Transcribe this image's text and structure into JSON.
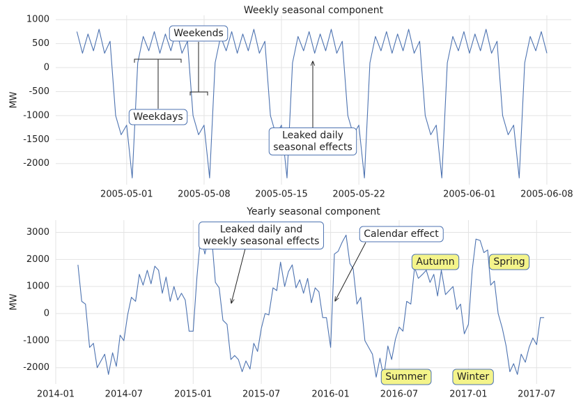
{
  "chart_data": [
    {
      "type": "line",
      "title": "Weekly seasonal component",
      "ylabel": "MW",
      "color": "#4c72b0",
      "grid": true,
      "xlim": [
        "2005-04-24T14:00",
        "2005-06-10T05:00"
      ],
      "ylim": [
        -2440,
        1090
      ],
      "xticks": [
        "2005-05-01",
        "2005-05-08",
        "2005-05-15",
        "2005-05-22",
        "2005-06-01",
        "2005-06-08"
      ],
      "yticks": [
        -2000,
        -1500,
        -1000,
        -500,
        0,
        500,
        1000
      ],
      "x": [
        "2005-04-26T12:00",
        "2005-04-27T00:00",
        "2005-04-27T12:00",
        "2005-04-28T00:00",
        "2005-04-28T12:00",
        "2005-04-29T00:00",
        "2005-04-29T12:00",
        "2005-04-30T00:00",
        "2005-04-30T12:00",
        "2005-05-01T00:00",
        "2005-05-01T12:00",
        "2005-05-02T00:00",
        "2005-05-02T12:00",
        "2005-05-03T00:00",
        "2005-05-03T12:00",
        "2005-05-04T00:00",
        "2005-05-04T12:00",
        "2005-05-05T00:00",
        "2005-05-05T12:00",
        "2005-05-06T00:00",
        "2005-05-06T12:00",
        "2005-05-07T00:00",
        "2005-05-07T12:00",
        "2005-05-08T00:00",
        "2005-05-08T12:00",
        "2005-05-09T00:00",
        "2005-05-09T12:00",
        "2005-05-10T00:00",
        "2005-05-10T12:00",
        "2005-05-11T00:00",
        "2005-05-11T12:00",
        "2005-05-12T00:00",
        "2005-05-12T12:00",
        "2005-05-13T00:00",
        "2005-05-13T12:00",
        "2005-05-14T00:00",
        "2005-05-14T12:00",
        "2005-05-15T00:00",
        "2005-05-15T12:00",
        "2005-05-16T00:00",
        "2005-05-16T12:00",
        "2005-05-17T00:00",
        "2005-05-17T12:00",
        "2005-05-18T00:00",
        "2005-05-18T12:00",
        "2005-05-19T00:00",
        "2005-05-19T12:00",
        "2005-05-20T00:00",
        "2005-05-20T12:00",
        "2005-05-21T00:00",
        "2005-05-21T12:00",
        "2005-05-22T00:00",
        "2005-05-22T12:00",
        "2005-05-23T00:00",
        "2005-05-23T12:00",
        "2005-05-24T00:00",
        "2005-05-24T12:00",
        "2005-05-25T00:00",
        "2005-05-25T12:00",
        "2005-05-26T00:00",
        "2005-05-26T12:00",
        "2005-05-27T00:00",
        "2005-05-27T12:00",
        "2005-05-28T00:00",
        "2005-05-28T12:00",
        "2005-05-29T00:00",
        "2005-05-29T12:00",
        "2005-05-30T00:00",
        "2005-05-30T12:00",
        "2005-05-31T00:00",
        "2005-05-31T12:00",
        "2005-06-01T00:00",
        "2005-06-01T12:00",
        "2005-06-02T00:00",
        "2005-06-02T12:00",
        "2005-06-03T00:00",
        "2005-06-03T12:00",
        "2005-06-04T00:00",
        "2005-06-04T12:00",
        "2005-06-05T00:00",
        "2005-06-05T12:00",
        "2005-06-06T00:00",
        "2005-06-06T12:00",
        "2005-06-07T00:00",
        "2005-06-07T12:00",
        "2005-06-08T00:00"
      ],
      "values": [
        750,
        300,
        700,
        350,
        800,
        300,
        550,
        -1000,
        -1400,
        -1200,
        -2300,
        100,
        650,
        350,
        750,
        300,
        700,
        350,
        800,
        300,
        550,
        -1000,
        -1400,
        -1200,
        -2300,
        100,
        650,
        350,
        750,
        300,
        700,
        350,
        800,
        300,
        550,
        -1000,
        -1400,
        -1200,
        -2300,
        100,
        650,
        350,
        750,
        300,
        700,
        350,
        800,
        300,
        550,
        -1000,
        -1400,
        -1200,
        -2300,
        100,
        650,
        350,
        750,
        300,
        700,
        350,
        800,
        300,
        550,
        -1000,
        -1400,
        -1200,
        -2300,
        100,
        650,
        350,
        750,
        300,
        700,
        350,
        800,
        300,
        550,
        -1000,
        -1400,
        -1200,
        -2300,
        100,
        650,
        350,
        750,
        300
      ],
      "annotations": [
        {
          "lines": [
            "Weekends"
          ]
        },
        {
          "lines": [
            "Weekdays"
          ]
        },
        {
          "lines": [
            "Leaked daily",
            "seasonal effects"
          ]
        }
      ]
    },
    {
      "type": "line",
      "title": "Yearly seasonal component",
      "ylabel": "MW",
      "color": "#4c72b0",
      "grid": true,
      "xlim": [
        "2014-01-01",
        "2017-10-01"
      ],
      "ylim": [
        -2600,
        3450
      ],
      "xticks": [
        "2014-01",
        "2014-07",
        "2015-01",
        "2015-07",
        "2016-01",
        "2016-07",
        "2017-01",
        "2017-07"
      ],
      "yticks": [
        -2000,
        -1000,
        0,
        1000,
        2000,
        3000
      ],
      "x": [
        "2014-03-01",
        "2014-03-11",
        "2014-03-21",
        "2014-04-01",
        "2014-04-11",
        "2014-04-21",
        "2014-05-01",
        "2014-05-11",
        "2014-05-21",
        "2014-06-01",
        "2014-06-11",
        "2014-06-21",
        "2014-07-01",
        "2014-07-11",
        "2014-07-21",
        "2014-08-01",
        "2014-08-11",
        "2014-08-21",
        "2014-09-01",
        "2014-09-11",
        "2014-09-21",
        "2014-10-01",
        "2014-10-11",
        "2014-10-21",
        "2014-11-01",
        "2014-11-11",
        "2014-11-21",
        "2014-12-01",
        "2014-12-11",
        "2014-12-21",
        "2015-01-01",
        "2015-01-11",
        "2015-01-21",
        "2015-02-01",
        "2015-02-11",
        "2015-02-21",
        "2015-03-01",
        "2015-03-11",
        "2015-03-21",
        "2015-04-01",
        "2015-04-11",
        "2015-04-21",
        "2015-05-01",
        "2015-05-11",
        "2015-05-21",
        "2015-06-01",
        "2015-06-11",
        "2015-06-21",
        "2015-07-01",
        "2015-07-11",
        "2015-07-21",
        "2015-08-01",
        "2015-08-11",
        "2015-08-21",
        "2015-09-01",
        "2015-09-11",
        "2015-09-21",
        "2015-10-01",
        "2015-10-11",
        "2015-10-21",
        "2015-11-01",
        "2015-11-11",
        "2015-11-21",
        "2015-12-01",
        "2015-12-11",
        "2015-12-21",
        "2016-01-01",
        "2016-01-11",
        "2016-01-21",
        "2016-02-01",
        "2016-02-11",
        "2016-02-21",
        "2016-03-01",
        "2016-03-11",
        "2016-03-21",
        "2016-04-01",
        "2016-04-11",
        "2016-04-21",
        "2016-05-01",
        "2016-05-11",
        "2016-05-21",
        "2016-06-01",
        "2016-06-11",
        "2016-06-21",
        "2016-07-01",
        "2016-07-11",
        "2016-07-21",
        "2016-08-01",
        "2016-08-11",
        "2016-08-21",
        "2016-09-01",
        "2016-09-11",
        "2016-09-21",
        "2016-10-01",
        "2016-10-11",
        "2016-10-21",
        "2016-11-01",
        "2016-11-11",
        "2016-11-21",
        "2016-12-01",
        "2016-12-11",
        "2016-12-21",
        "2017-01-01",
        "2017-01-11",
        "2017-01-21",
        "2017-02-01",
        "2017-02-11",
        "2017-02-21",
        "2017-03-01",
        "2017-03-11",
        "2017-03-21",
        "2017-04-01",
        "2017-04-11",
        "2017-04-21",
        "2017-05-01",
        "2017-05-11",
        "2017-05-21",
        "2017-06-01",
        "2017-06-11",
        "2017-06-21",
        "2017-07-01",
        "2017-07-11",
        "2017-07-21"
      ],
      "values": [
        1800,
        450,
        350,
        -1250,
        -1100,
        -2000,
        -1750,
        -1500,
        -2250,
        -1450,
        -1950,
        -800,
        -1000,
        -50,
        600,
        450,
        1450,
        1050,
        1600,
        1100,
        1750,
        1600,
        750,
        1350,
        450,
        1000,
        500,
        750,
        500,
        -650,
        -650,
        1350,
        2900,
        2200,
        2850,
        2500,
        1150,
        950,
        -250,
        -400,
        -1700,
        -1550,
        -1700,
        -2150,
        -1750,
        -2050,
        -1100,
        -1400,
        -550,
        0,
        -50,
        950,
        850,
        1900,
        1000,
        1550,
        1800,
        950,
        1250,
        750,
        1300,
        400,
        950,
        800,
        -150,
        -150,
        -1250,
        2200,
        2300,
        2650,
        2900,
        1850,
        1650,
        350,
        600,
        -1000,
        -1250,
        -1500,
        -2350,
        -1650,
        -2350,
        -1200,
        -1700,
        -950,
        -500,
        -650,
        450,
        350,
        1700,
        1300,
        1450,
        1600,
        1150,
        1450,
        650,
        1600,
        700,
        850,
        1000,
        150,
        350,
        -750,
        -400,
        1600,
        2750,
        2700,
        2250,
        2350,
        1050,
        1200,
        0,
        -550,
        -1200,
        -2150,
        -1850,
        -2250,
        -1500,
        -1800,
        -1250,
        -900,
        -1150,
        -150,
        -150
      ],
      "annotations": [
        {
          "lines": [
            "Leaked daily and",
            "weekly seasonal effects"
          ]
        },
        {
          "lines": [
            "Calendar effect"
          ]
        },
        {
          "lines": [
            "Autumn"
          ]
        },
        {
          "lines": [
            "Spring"
          ]
        },
        {
          "lines": [
            "Summer"
          ]
        },
        {
          "lines": [
            "Winter"
          ]
        }
      ]
    }
  ]
}
